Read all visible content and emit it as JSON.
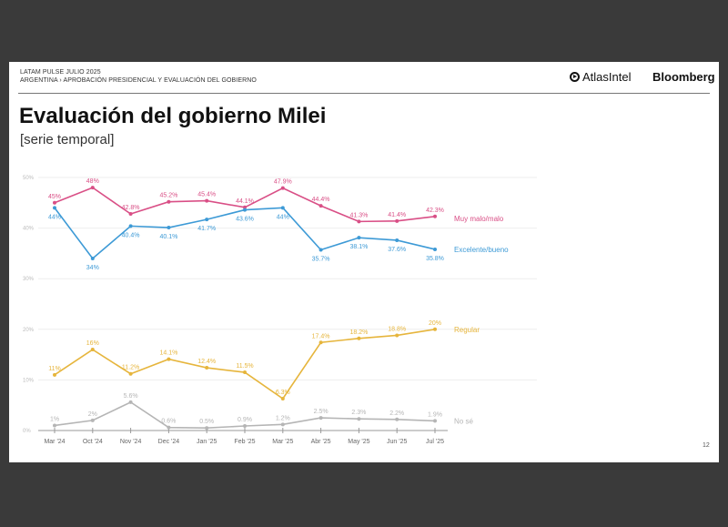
{
  "header": {
    "line1": "LATAM PULSE JULIO 2025",
    "line2": "ARGENTINA › APROBACIÓN PRESIDENCIAL Y EVALUACIÓN DEL GOBIERNO",
    "logo_atlas": "AtlasIntel",
    "logo_bloomberg": "Bloomberg"
  },
  "title": "Evaluación del gobierno Milei",
  "subtitle": "[serie temporal]",
  "page_number": "12",
  "chart_data": {
    "type": "line",
    "categories": [
      "Mar '24",
      "Oct '24",
      "Nov '24",
      "Dec '24",
      "Jan '25",
      "Feb '25",
      "Mar '25",
      "Abr '25",
      "May '25",
      "Jun '25",
      "Jul '25"
    ],
    "ylim": [
      0,
      50
    ],
    "yticks": [
      "0%",
      "10%",
      "20%",
      "30%",
      "40%",
      "50%"
    ],
    "grid": true,
    "legend": "right, inline labels at line ends",
    "series": [
      {
        "name": "Muy malo/malo",
        "color": "#d94f86",
        "values": [
          45,
          48,
          42.8,
          45.2,
          45.4,
          44.1,
          47.9,
          44.4,
          41.3,
          41.4,
          42.3
        ],
        "labels": [
          "45%",
          "48%",
          "42.8%",
          "45.2%",
          "45.4%",
          "44.1%",
          "47.9%",
          "44.4%",
          "41.3%",
          "41.4%",
          "42.3%"
        ]
      },
      {
        "name": "Excelente/bueno",
        "color": "#3d9ad6",
        "values": [
          44,
          34,
          40.4,
          40.1,
          41.7,
          43.6,
          44,
          35.7,
          38.1,
          37.6,
          35.8
        ],
        "labels": [
          "44%",
          "34%",
          "40.4%",
          "40.1%",
          "41.7%",
          "43.6%",
          "44%",
          "35.7%",
          "38.1%",
          "37.6%",
          "35.8%"
        ]
      },
      {
        "name": "Regular",
        "color": "#e6b53c",
        "values": [
          11,
          16,
          11.2,
          14.1,
          12.4,
          11.5,
          6.3,
          17.4,
          18.2,
          18.8,
          20
        ],
        "labels": [
          "11%",
          "16%",
          "11.2%",
          "14.1%",
          "12.4%",
          "11.5%",
          "6.3%",
          "17.4%",
          "18.2%",
          "18.8%",
          "20%"
        ]
      },
      {
        "name": "No sé",
        "color": "#b5b5b5",
        "values": [
          1,
          2,
          5.6,
          0.6,
          0.5,
          0.9,
          1.2,
          2.5,
          2.3,
          2.2,
          1.9
        ],
        "labels": [
          "1%",
          "2%",
          "5.6%",
          "0.6%",
          "0.5%",
          "0.9%",
          "1.2%",
          "2.5%",
          "2.3%",
          "2.2%",
          "1.9%"
        ]
      }
    ]
  }
}
